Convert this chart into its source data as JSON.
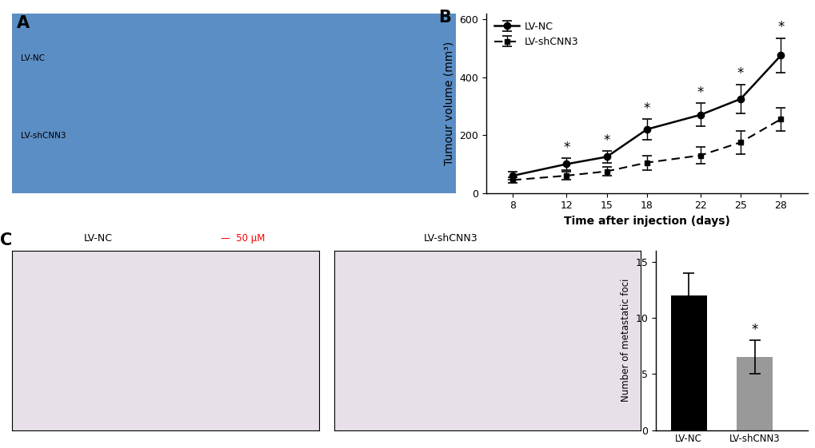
{
  "panel_B": {
    "days": [
      8,
      12,
      15,
      18,
      22,
      25,
      28
    ],
    "lv_nc_mean": [
      60,
      100,
      125,
      220,
      270,
      325,
      475
    ],
    "lv_nc_err": [
      15,
      20,
      20,
      35,
      40,
      50,
      60
    ],
    "lv_shcnn3_mean": [
      45,
      60,
      75,
      105,
      130,
      175,
      255
    ],
    "lv_shcnn3_err": [
      10,
      15,
      15,
      25,
      30,
      40,
      40
    ],
    "star_days_idx": [
      1,
      2,
      3,
      4,
      5,
      6
    ],
    "ylabel": "Tumour volume (mm³)",
    "xlabel": "Time after injection (days)",
    "ylim": [
      0,
      620
    ],
    "yticks": [
      0,
      200,
      400,
      600
    ],
    "legend_nc": "LV-NC",
    "legend_sh": "LV-shCNN3"
  },
  "panel_C_bar": {
    "categories": [
      "LV-NC",
      "LV-shCNN3"
    ],
    "values": [
      12,
      6.5
    ],
    "errors": [
      2.0,
      1.5
    ],
    "colors": [
      "#000000",
      "#999999"
    ],
    "ylabel": "Number of metastatic foci",
    "ylim": [
      0,
      16
    ],
    "yticks": [
      0,
      5,
      10,
      15
    ],
    "star_label": "*"
  },
  "panel_A_label": "A",
  "panel_B_label": "B",
  "panel_C_label": "C",
  "photo_A_color": "#5b8ec4",
  "photo_C_color": "#e8e0e8",
  "bg_color": "#ffffff",
  "label_fontsize": 15,
  "axis_fontsize": 10,
  "tick_fontsize": 9
}
